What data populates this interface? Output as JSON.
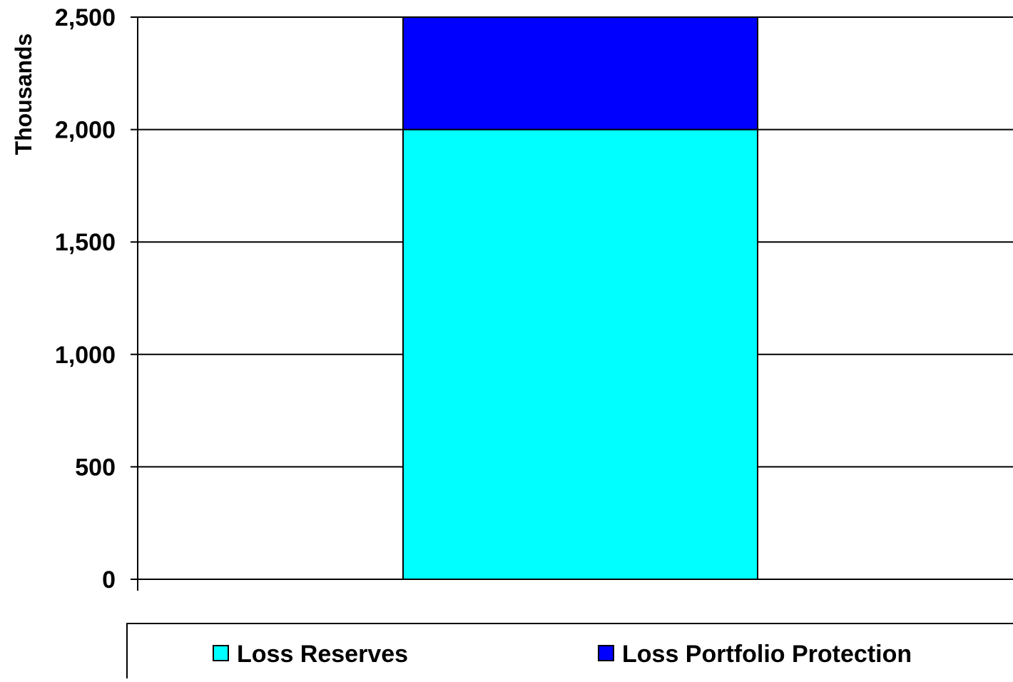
{
  "colors": {
    "background": "#ffffff",
    "axis": "#000000",
    "gridline": "#000000",
    "bar_outline": "#000000"
  },
  "chart_data": {
    "type": "bar",
    "stacked": true,
    "categories": [
      ""
    ],
    "series": [
      {
        "name": "Loss Reserves",
        "values": [
          2000
        ],
        "color": "#00ffff"
      },
      {
        "name": "Loss Portfolio Protection",
        "values": [
          500
        ],
        "color": "#0000ff"
      }
    ],
    "title": "",
    "xlabel": "",
    "ylabel": "Thousands",
    "ylim": [
      0,
      2500
    ],
    "yticks": [
      0,
      500,
      1000,
      1500,
      2000,
      2500
    ],
    "ytick_labels": [
      "0",
      "500",
      "1,000",
      "1,500",
      "2,000",
      "2,500"
    ],
    "grid": true,
    "legend_position": "bottom"
  }
}
